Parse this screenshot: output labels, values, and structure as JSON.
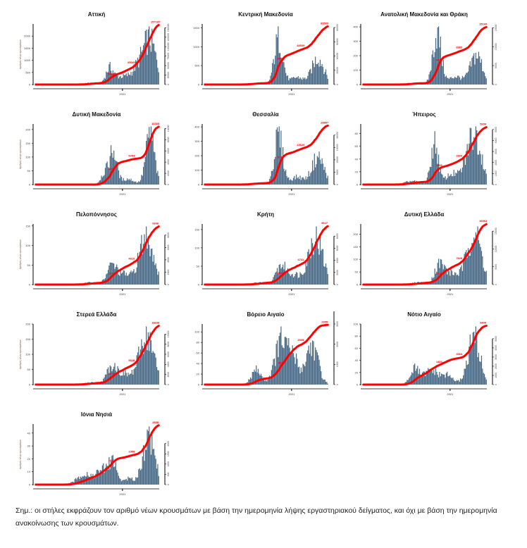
{
  "chart_data": [
    {
      "type": "bar",
      "title": "Αττική",
      "ylim": [
        0,
        2500
      ],
      "yticks": [
        0,
        500,
        1000,
        1500,
        2000
      ],
      "y2ticks": [
        0,
        25000,
        50000,
        75000,
        100000,
        125000,
        150000
      ],
      "y2lim": [
        0,
        160000
      ],
      "ylabel": "Αριθμός νέων κρουσμάτων",
      "xtick": "2021",
      "cum_total": "157187",
      "cum_mid": "50189",
      "cum_mid2": "85163",
      "cum_final": 157187,
      "shape": "attiki"
    },
    {
      "type": "bar",
      "title": "Κεντρική Μακεδονία",
      "ylim": [
        0,
        1600
      ],
      "yticks": [
        0,
        500,
        1000,
        1500
      ],
      "y2ticks": [
        0,
        20000,
        40000,
        60000,
        80000
      ],
      "y2lim": [
        0,
        85000
      ],
      "ylabel": "",
      "xtick": "2021",
      "cum_total": "81509",
      "cum_mid": "20636",
      "cum_mid2": "44539",
      "cum_final": 81509,
      "shape": "north"
    },
    {
      "type": "bar",
      "title": "Ανατολική Μακεδονία και Θράκη",
      "ylim": [
        0,
        420
      ],
      "yticks": [
        0,
        100,
        200,
        300,
        400
      ],
      "y2ticks": [
        0,
        5000,
        10000,
        15000
      ],
      "y2lim": [
        0,
        16000
      ],
      "ylabel": "",
      "xtick": "2021",
      "cum_total": "15160",
      "cum_mid": "4470",
      "cum_mid2": "8983",
      "cum_final": 15160,
      "shape": "north"
    },
    {
      "type": "bar",
      "title": "Δυτική Μακεδονία",
      "ylim": [
        0,
        220
      ],
      "yticks": [
        0,
        50,
        100,
        150,
        200
      ],
      "y2ticks": [
        0,
        2000,
        4000,
        6000,
        8000,
        10000
      ],
      "y2lim": [
        0,
        10800
      ],
      "ylabel": "Αριθμός νέων κρουσμάτων",
      "xtick": "2021",
      "cum_total": "10305",
      "cum_mid": "3469",
      "cum_mid2": "5253",
      "cum_final": 10305,
      "shape": "dmak"
    },
    {
      "type": "bar",
      "title": "Θεσσαλία",
      "ylim": [
        0,
        420
      ],
      "yticks": [
        0,
        100,
        200,
        300,
        400
      ],
      "y2ticks": [
        0,
        5000,
        10000,
        15000,
        20000
      ],
      "y2lim": [
        0,
        24500
      ],
      "ylabel": "",
      "xtick": "2021",
      "cum_total": "23857",
      "cum_mid": "9723",
      "cum_mid2": "13629",
      "cum_final": 23857,
      "shape": "north"
    },
    {
      "type": "bar",
      "title": "Ήπειρος",
      "ylim": [
        0,
        95
      ],
      "yticks": [
        0,
        20,
        40,
        60,
        80
      ],
      "y2ticks": [
        0,
        1000,
        2000,
        3000,
        4000,
        5000
      ],
      "y2lim": [
        0,
        5500
      ],
      "ylabel": "",
      "xtick": "2021",
      "cum_total": "5209",
      "cum_mid": "1906",
      "cum_mid2": "2604",
      "cum_final": 5209,
      "shape": "ipeiros"
    },
    {
      "type": "bar",
      "title": "Πελοπόννησος",
      "ylim": [
        0,
        155
      ],
      "yticks": [
        0,
        50,
        100,
        150
      ],
      "y2ticks": [
        0,
        2000,
        4000,
        6000,
        8000
      ],
      "y2lim": [
        0,
        9800
      ],
      "ylabel": "Αριθμός νέων κρουσμάτων",
      "xtick": "2021",
      "cum_total": "9396",
      "cum_mid": "2294",
      "cum_mid2": "4610",
      "cum_final": 9396,
      "shape": "south"
    },
    {
      "type": "bar",
      "title": "Κρήτη",
      "ylim": [
        0,
        165
      ],
      "yticks": [
        0,
        50,
        100,
        150
      ],
      "y2ticks": [
        0,
        2000,
        4000,
        6000,
        8000
      ],
      "y2lim": [
        0,
        10000
      ],
      "ylabel": "",
      "xtick": "2021",
      "cum_total": "9627",
      "cum_mid": "2868",
      "cum_mid2": "4731",
      "cum_final": 9627,
      "shape": "south"
    },
    {
      "type": "bar",
      "title": "Δυτική Ελλάδα",
      "ylim": [
        0,
        240
      ],
      "yticks": [
        0,
        50,
        100,
        150,
        200
      ],
      "y2ticks": [
        0,
        5000,
        10000,
        15000
      ],
      "y2lim": [
        0,
        17000
      ],
      "ylabel": "",
      "xtick": "2021",
      "cum_total": "16962",
      "cum_mid": "3741",
      "cum_mid2": "7628",
      "cum_final": 16962,
      "shape": "south"
    },
    {
      "type": "bar",
      "title": "Στερεά Ελλάδα",
      "ylim": [
        0,
        200
      ],
      "yticks": [
        0,
        50,
        100,
        150,
        200
      ],
      "y2ticks": [
        0,
        2000,
        4000,
        6000,
        8000,
        10000
      ],
      "y2lim": [
        0,
        12000
      ],
      "ylabel": "Αριθμός νέων κρουσμάτων",
      "xtick": "2021",
      "cum_total": "11636",
      "cum_mid": "3078",
      "cum_mid2": "5628",
      "cum_final": 11636,
      "shape": "south"
    },
    {
      "type": "bar",
      "title": "Βόρειο Αιγαίο",
      "ylim": [
        0,
        115
      ],
      "yticks": [
        0,
        20,
        40,
        60,
        80,
        100
      ],
      "y2ticks": [
        0,
        1000,
        2000,
        3000,
        4000
      ],
      "y2lim": [
        0,
        3000
      ],
      "ylabel": "",
      "xtick": "2021",
      "cum_total": "2955",
      "cum_mid": "852",
      "cum_mid2": "2009",
      "cum_final": 2955,
      "shape": "vaigaio"
    },
    {
      "type": "bar",
      "title": "Νότιο Αιγαίο",
      "ylim": [
        0,
        100
      ],
      "yticks": [
        0,
        20,
        40,
        60,
        80,
        100
      ],
      "y2ticks": [
        0,
        1000,
        2000,
        3000,
        4000,
        5000
      ],
      "y2lim": [
        0,
        6600
      ],
      "ylabel": "",
      "xtick": "2021",
      "cum_total": "6409",
      "cum_mid": "1424",
      "cum_mid2": "3064",
      "cum_final": 6409,
      "shape": "naigaio"
    },
    {
      "type": "bar",
      "title": "Ιόνια Νησιά",
      "ylim": [
        0,
        47
      ],
      "yticks": [
        0,
        10,
        20,
        30,
        40
      ],
      "y2ticks": [
        0,
        500,
        1000,
        1500,
        2000
      ],
      "y2lim": [
        0,
        2950
      ],
      "ylabel": "Αριθμός νέων κρουσμάτων",
      "xtick": "2021",
      "cum_total": "2888",
      "cum_mid": "1047",
      "cum_mid2": "1558",
      "cum_final": 2888,
      "shape": "ionia"
    }
  ],
  "note": "Σημ.: οι στήλες εκφράζουν τον αριθμό νέων κρουσμάτων με βάση την ημερομηνία λήψης εργαστηριακού δείγματος, και όχι με βάση την ημερομηνία ανακοίνωσης των κρουσμάτων.",
  "colors": {
    "bars": "#4a6b88",
    "cumulative": "#ff0000",
    "label": "#ff0000",
    "axis": "#000000"
  }
}
